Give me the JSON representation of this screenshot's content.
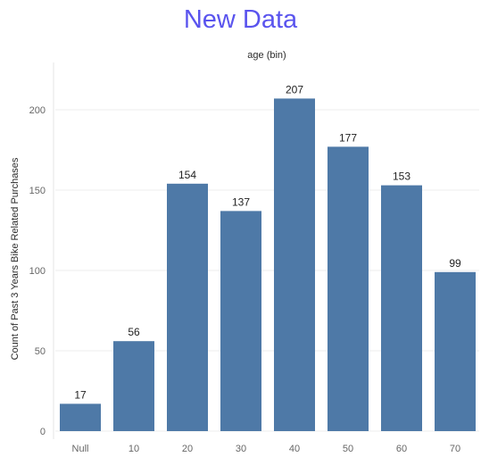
{
  "title": "New Data",
  "colors": {
    "title": "#5a54ee",
    "bar": "#4e79a7",
    "gridline": "#ececec"
  },
  "chart_data": {
    "type": "bar",
    "title": "New Data",
    "column_header": "age (bin)",
    "xlabel": "",
    "ylabel": "Count of Past 3 Years Bike Related Purchases",
    "categories": [
      "Null",
      "10",
      "20",
      "30",
      "40",
      "50",
      "60",
      "70"
    ],
    "values": [
      17,
      56,
      154,
      137,
      207,
      177,
      153,
      99
    ],
    "yticks": [
      0,
      50,
      100,
      150,
      200
    ],
    "ylim": [
      0,
      230
    ],
    "grid": true,
    "legend": "none",
    "data_labels": true
  }
}
